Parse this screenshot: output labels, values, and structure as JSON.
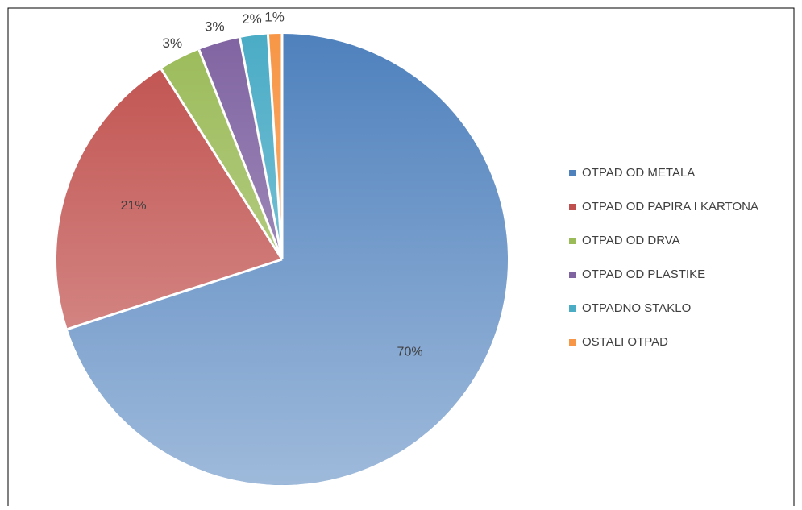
{
  "chart_data": {
    "type": "pie",
    "categories": [
      "OTPAD OD METALA",
      "OTPAD OD PAPIRA I KARTONA",
      "OTPAD OD DRVA",
      "OTPAD OD PLASTIKE",
      "OTPADNO STAKLO",
      "OSTALI OTPAD"
    ],
    "values": [
      70,
      21,
      3,
      3,
      2,
      1
    ],
    "value_labels": [
      "70%",
      "21%",
      "3%",
      "3%",
      "2%",
      "1%"
    ],
    "colors": [
      "#4f81bd",
      "#c0504d",
      "#9bbb59",
      "#8064a2",
      "#4bacc6",
      "#f79646"
    ],
    "legend": "right"
  }
}
